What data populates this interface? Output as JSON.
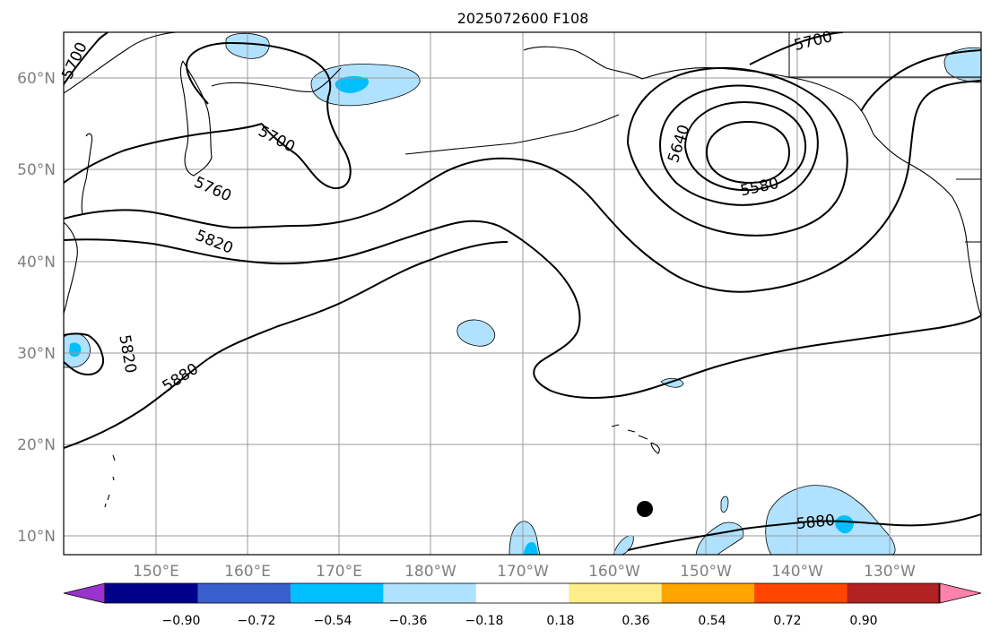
{
  "title": "2025072600 F108",
  "map": {
    "lat_labels": [
      "60°N",
      "50°N",
      "40°N",
      "30°N",
      "20°N",
      "10°N"
    ],
    "lon_labels": [
      "150°E",
      "160°E",
      "170°E",
      "180°W",
      "170°W",
      "160°W",
      "150°W",
      "140°W",
      "130°W"
    ],
    "contour_labels": [
      "5700",
      "5700",
      "5700",
      "5760",
      "5820",
      "5820",
      "5880",
      "5880",
      "5640",
      "5580"
    ],
    "contour_color": "#000000",
    "marker_icon": "filled-circle",
    "marker_color": "#000000"
  },
  "colorbar": {
    "colors": [
      "#9a32cd",
      "#00008b",
      "#3a5fcd",
      "#00bfff",
      "#b0e2ff",
      "#ffffff",
      "#ffec8b",
      "#ffa500",
      "#ff4500",
      "#b22222",
      "#ff82ab"
    ],
    "tick_labels": [
      "−0.90",
      "−0.72",
      "−0.54",
      "−0.36",
      "−0.18",
      "0.18",
      "0.36",
      "0.54",
      "0.72",
      "0.90"
    ]
  }
}
